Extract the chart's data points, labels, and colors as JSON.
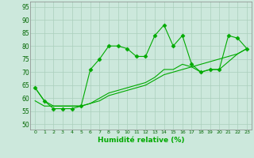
{
  "title": "",
  "xlabel": "Humidité relative (%)",
  "ylabel": "",
  "bg_color": "#cce8dc",
  "grid_color": "#aacfbc",
  "line_color": "#00aa00",
  "marker": "D",
  "marker_size": 2.5,
  "xlim": [
    -0.5,
    23.5
  ],
  "ylim": [
    48,
    97
  ],
  "yticks": [
    50,
    55,
    60,
    65,
    70,
    75,
    80,
    85,
    90,
    95
  ],
  "xticks": [
    0,
    1,
    2,
    3,
    4,
    5,
    6,
    7,
    8,
    9,
    10,
    11,
    12,
    13,
    14,
    15,
    16,
    17,
    18,
    19,
    20,
    21,
    22,
    23
  ],
  "main_y": [
    64,
    59,
    56,
    56,
    56,
    57,
    71,
    75,
    80,
    80,
    79,
    76,
    76,
    84,
    88,
    80,
    84,
    73,
    70,
    71,
    71,
    84,
    83,
    79
  ],
  "line2_y": [
    59,
    57,
    57,
    57,
    57,
    57,
    58,
    59,
    61,
    62,
    63,
    64,
    65,
    67,
    69,
    70,
    71,
    72,
    73,
    74,
    75,
    76,
    77,
    79
  ],
  "line3_y": [
    64,
    59,
    57,
    57,
    57,
    57,
    58,
    60,
    62,
    63,
    64,
    65,
    66,
    68,
    71,
    71,
    73,
    72,
    70,
    71,
    71,
    74,
    77,
    79
  ]
}
